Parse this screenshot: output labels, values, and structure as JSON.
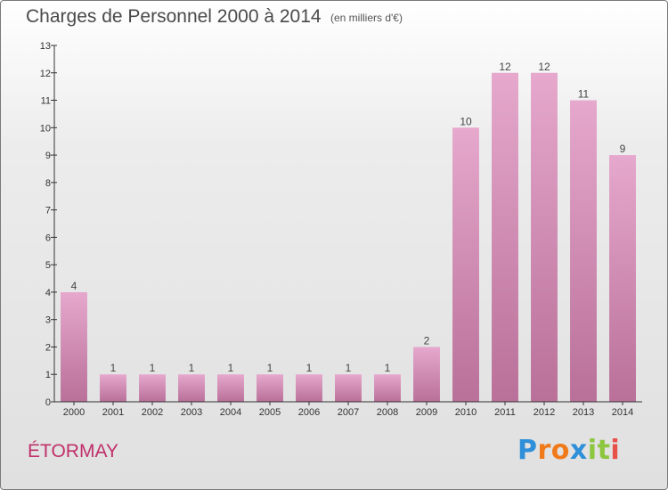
{
  "chart_data": {
    "type": "bar",
    "title": "Charges de Personnel 2000 à 2014",
    "subtitle": "(en milliers d'€)",
    "categories": [
      "2000",
      "2001",
      "2002",
      "2003",
      "2004",
      "2005",
      "2006",
      "2007",
      "2008",
      "2009",
      "2010",
      "2011",
      "2012",
      "2013",
      "2014"
    ],
    "values": [
      4,
      1,
      1,
      1,
      1,
      1,
      1,
      1,
      1,
      2,
      10,
      12,
      12,
      11,
      9
    ],
    "ylim": [
      0,
      13
    ],
    "yticks": [
      0,
      1,
      2,
      3,
      4,
      5,
      6,
      7,
      8,
      9,
      10,
      11,
      12,
      13
    ],
    "grid": false,
    "legend": "none"
  },
  "location": "ÉTORMAY",
  "brand": {
    "name": "Proxiti",
    "letters": [
      "P",
      "r",
      "o",
      "x",
      "i",
      "t",
      "i"
    ],
    "letter_colors": [
      "#2f8fd8",
      "#f07a1a",
      "#f07a1a",
      "#2f8fd8",
      "#8dc63f",
      "#8dc63f",
      "#e8504a"
    ]
  },
  "colors": {
    "bar_light": "#e6a8cd",
    "bar_dark": "#b97099",
    "axis": "#333333",
    "town": "#c0306a"
  }
}
